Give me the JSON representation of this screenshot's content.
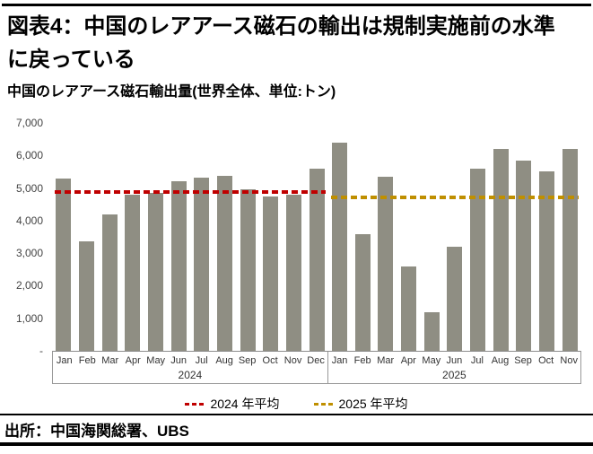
{
  "header": {
    "figure_title": "図表4：中国のレアアース磁石の輸出は規制実施前の水準に戻っている",
    "chart_subtitle": "中国のレアアース磁石輸出量(世界全体、単位:トン)"
  },
  "chart_data": {
    "type": "bar",
    "title": "中国のレアアース磁石輸出量(世界全体、単位:トン)",
    "unit": "トン",
    "ylim": [
      0,
      7000
    ],
    "grid": false,
    "bar_color": "#8F8E83",
    "yticks": [
      {
        "value": 7000,
        "label": "7,000"
      },
      {
        "value": 6000,
        "label": "6,000"
      },
      {
        "value": 5000,
        "label": "5,000"
      },
      {
        "value": 4000,
        "label": "4,000"
      },
      {
        "value": 3000,
        "label": "3,000"
      },
      {
        "value": 2000,
        "label": "2,000"
      },
      {
        "value": 1000,
        "label": "1,000"
      },
      {
        "value": 0,
        "label": "-"
      }
    ],
    "groups": [
      {
        "year": "2024",
        "months": [
          "Jan",
          "Feb",
          "Mar",
          "Apr",
          "May",
          "Jun",
          "Jul",
          "Aug",
          "Sep",
          "Oct",
          "Nov",
          "Dec"
        ],
        "values": [
          5300,
          3370,
          4200,
          4790,
          4840,
          5200,
          5310,
          5370,
          4960,
          4740,
          4800,
          5600
        ]
      },
      {
        "year": "2025",
        "months": [
          "Jan",
          "Feb",
          "Mar",
          "Apr",
          "May",
          "Jun",
          "Jul",
          "Aug",
          "Sep",
          "Oct",
          "Nov"
        ],
        "values": [
          6400,
          3580,
          5350,
          2590,
          1190,
          3190,
          5600,
          6200,
          5830,
          5500,
          6200
        ]
      }
    ],
    "avg_lines": [
      {
        "label": "2024 年平均",
        "value": 4880,
        "color": "#C00000"
      },
      {
        "label": "2025 年平均",
        "value": 4700,
        "color": "#BF8F00"
      }
    ],
    "legend_position": "bottom"
  },
  "legend": {
    "items": [
      {
        "label": "2024 年平均",
        "color": "#C00000"
      },
      {
        "label": "2025 年平均",
        "color": "#BF8F00"
      }
    ]
  },
  "footer": {
    "source": "出所：中国海関総署、UBS"
  }
}
